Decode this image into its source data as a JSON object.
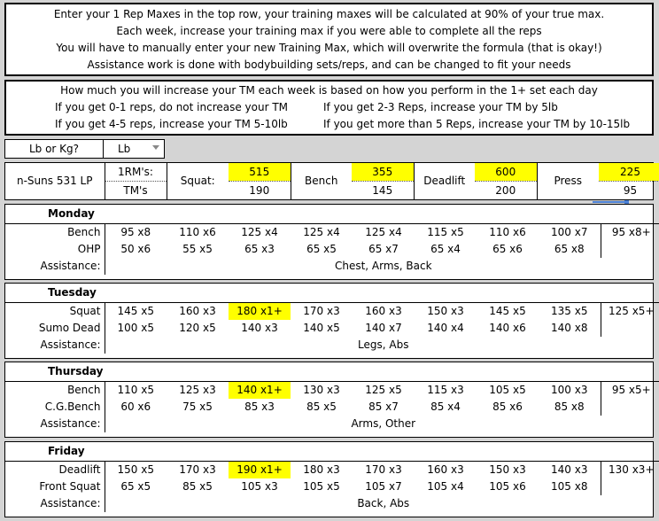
{
  "intro": {
    "lines": [
      "Enter your 1 Rep Maxes in the top row, your training maxes will be calculated at 90% of your true max.",
      "Each week, increase your training max if you were able to complete all the reps",
      "You will have to manually enter your new Training Max, which will overwrite the formula (that is okay!)",
      "Assistance work is done with bodybuilding sets/reps, and can be changed to fit your needs"
    ]
  },
  "increase_box": {
    "title": "How much you will increase your TM each week is based on how you perform in the 1+ set each day",
    "left": [
      "If you get 0-1 reps, do not increase your TM",
      "If you get 4-5 reps, increase your TM 5-10lb"
    ],
    "right": [
      "If you get 2-3 Reps, increase your TM by 5lb",
      "If you get more than 5 Reps, increase your TM by 10-15lb"
    ]
  },
  "units": {
    "label": "Lb or Kg?",
    "value": "Lb"
  },
  "header": {
    "program": "n-Suns 531 LP",
    "rm_label": "1RM's:",
    "tm_label": "TM's",
    "lifts": [
      {
        "name": "Squat:",
        "rm": "515",
        "tm": "190"
      },
      {
        "name": "Bench",
        "rm": "355",
        "tm": "145"
      },
      {
        "name": "Deadlift",
        "rm": "600",
        "tm": "200"
      },
      {
        "name": "Press",
        "rm": "225",
        "tm": "95"
      }
    ]
  },
  "days": [
    {
      "day": "Monday",
      "rows": [
        {
          "exercise": "Bench",
          "sets": [
            "95  x8",
            "110  x6",
            "125  x4",
            "125  x4",
            "125  x4",
            "115  x5",
            "110  x6",
            "100  x7",
            "95  x8+"
          ]
        },
        {
          "exercise": "OHP",
          "sets": [
            "50  x6",
            "55  x5",
            "65  x3",
            "65  x5",
            "65  x7",
            "65  x4",
            "65  x6",
            "65  x8",
            ""
          ]
        }
      ],
      "assistance_label": "Assistance:",
      "assistance": "Chest, Arms, Back"
    },
    {
      "day": "Tuesday",
      "rows": [
        {
          "exercise": "Squat",
          "sets": [
            "145  x5",
            "160  x3",
            "180  x1+",
            "170  x3",
            "160  x3",
            "150  x3",
            "145  x5",
            "135  x5",
            "125  x5+"
          ]
        },
        {
          "exercise": "Sumo Dead",
          "sets": [
            "100  x5",
            "120  x5",
            "140  x3",
            "140  x5",
            "140  x7",
            "140  x4",
            "140  x6",
            "140  x8",
            ""
          ]
        }
      ],
      "assistance_label": "Assistance:",
      "assistance": "Legs, Abs"
    },
    {
      "day": "Thursday",
      "rows": [
        {
          "exercise": "Bench",
          "sets": [
            "110  x5",
            "125  x3",
            "140  x1+",
            "130  x3",
            "125  x5",
            "115  x3",
            "105  x5",
            "100  x3",
            "95  x5+"
          ]
        },
        {
          "exercise": "C.G.Bench",
          "sets": [
            "60  x6",
            "75  x5",
            "85  x3",
            "85  x5",
            "85  x7",
            "85  x4",
            "85  x6",
            "85  x8",
            ""
          ]
        }
      ],
      "assistance_label": "Assistance:",
      "assistance": "Arms, Other"
    },
    {
      "day": "Friday",
      "rows": [
        {
          "exercise": "Deadlift",
          "sets": [
            "150  x5",
            "170  x3",
            "190  x1+",
            "180  x3",
            "170  x3",
            "160  x3",
            "150  x3",
            "140  x3",
            "130  x3+"
          ]
        },
        {
          "exercise": "Front Squat",
          "sets": [
            "65  x5",
            "85  x5",
            "105  x3",
            "105  x5",
            "105  x7",
            "105  x4",
            "105  x6",
            "105  x8",
            ""
          ]
        }
      ],
      "assistance_label": "Assistance:",
      "assistance": "Back, Abs"
    }
  ],
  "colors": {
    "highlight": "#ffff00",
    "grid_bg": "#d4d4d4"
  }
}
